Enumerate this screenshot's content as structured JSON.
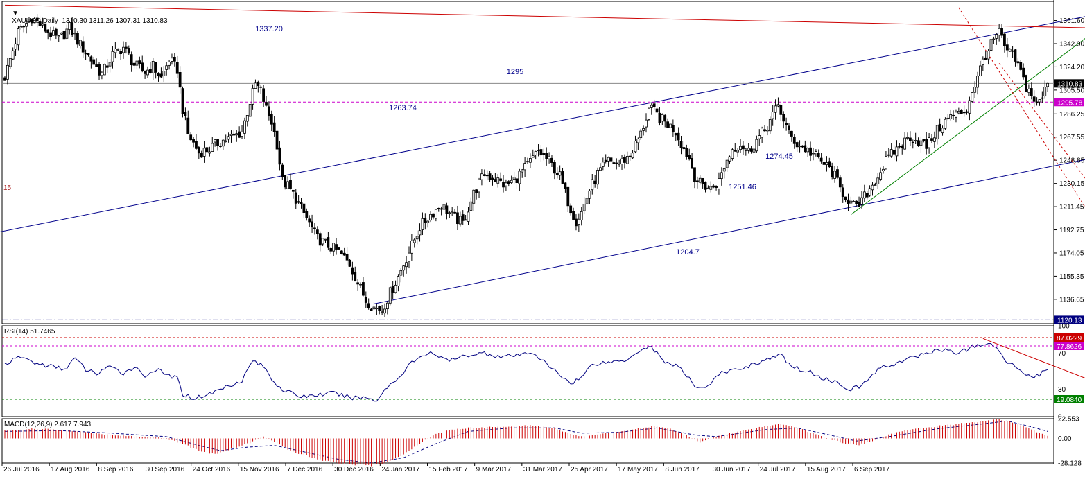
{
  "header": {
    "symbol_line": "XAUUSD,Daily  1310.30 1311.26 1307.31 1310.83",
    "side_label": "15"
  },
  "colors": {
    "bull": "#000000",
    "bear": "#000000",
    "channel": "#00008b",
    "resistance": "#cc0000",
    "trend": "#008000",
    "level_price": "#000080",
    "level_magenta": "#cc00cc",
    "rsi_line": "#000080",
    "macd_hist": "#cc0000",
    "macd_signal": "#000080",
    "grid": "#c0c0c0"
  },
  "chart_data": [
    {
      "type": "candlestick",
      "name": "main",
      "title": "XAUUSD,Daily",
      "ohlc_header": "1310.30 1311.26 1307.31 1310.83",
      "y_ticks": [
        "1361.60",
        "1342.90",
        "1324.20",
        "1305.50",
        "1286.25",
        "1267.55",
        "1248.85",
        "1230.15",
        "1211.45",
        "1192.75",
        "1174.05",
        "1155.35",
        "1136.65"
      ],
      "ylim": [
        1117.0,
        1377.0
      ],
      "x_tick_labels": [
        "26 Jul 2016",
        "17 Aug 2016",
        "8 Sep 2016",
        "30 Sep 2016",
        "24 Oct 2016",
        "15 Nov 2016",
        "7 Dec 2016",
        "30 Dec 2016",
        "24 Jan 2017",
        "15 Feb 2017",
        "9 Mar 2017",
        "31 Mar 2017",
        "25 Apr 2017",
        "17 May 2017",
        "8 Jun 2017",
        "30 Jun 2017",
        "24 Jul 2017",
        "15 Aug 2017",
        "6 Sep 2017"
      ],
      "price_path": [
        [
          0,
          1316
        ],
        [
          5,
          1352
        ],
        [
          10,
          1364
        ],
        [
          14,
          1356
        ],
        [
          20,
          1346
        ],
        [
          24,
          1356
        ],
        [
          28,
          1342
        ],
        [
          32,
          1330
        ],
        [
          36,
          1318
        ],
        [
          40,
          1334
        ],
        [
          44,
          1340
        ],
        [
          48,
          1326
        ],
        [
          52,
          1320
        ],
        [
          55,
          1325
        ],
        [
          58,
          1315
        ],
        [
          61,
          1330
        ],
        [
          64,
          1322
        ],
        [
          66,
          1290
        ],
        [
          68,
          1270
        ],
        [
          72,
          1255
        ],
        [
          76,
          1258
        ],
        [
          80,
          1264
        ],
        [
          85,
          1268
        ],
        [
          88,
          1272
        ],
        [
          91,
          1296
        ],
        [
          93,
          1310
        ],
        [
          95,
          1305
        ],
        [
          97,
          1290
        ],
        [
          99,
          1280
        ],
        [
          101,
          1262
        ],
        [
          103,
          1232
        ],
        [
          105,
          1228
        ],
        [
          108,
          1218
        ],
        [
          112,
          1202
        ],
        [
          116,
          1186
        ],
        [
          120,
          1180
        ],
        [
          124,
          1175
        ],
        [
          128,
          1165
        ],
        [
          131,
          1150
        ],
        [
          134,
          1136
        ],
        [
          137,
          1130
        ],
        [
          140,
          1128
        ],
        [
          143,
          1142
        ],
        [
          146,
          1155
        ],
        [
          150,
          1175
        ],
        [
          154,
          1195
        ],
        [
          158,
          1205
        ],
        [
          162,
          1213
        ],
        [
          166,
          1204
        ],
        [
          170,
          1198
        ],
        [
          174,
          1222
        ],
        [
          178,
          1238
        ],
        [
          182,
          1234
        ],
        [
          186,
          1228
        ],
        [
          190,
          1235
        ],
        [
          194,
          1245
        ],
        [
          198,
          1256
        ],
        [
          202,
          1248
        ],
        [
          206,
          1236
        ],
        [
          208,
          1222
        ],
        [
          210,
          1210
        ],
        [
          212,
          1200
        ],
        [
          214,
          1207
        ],
        [
          217,
          1225
        ],
        [
          220,
          1238
        ],
        [
          224,
          1248
        ],
        [
          228,
          1246
        ],
        [
          232,
          1253
        ],
        [
          236,
          1270
        ],
        [
          239,
          1290
        ],
        [
          241,
          1288
        ],
        [
          243,
          1283
        ],
        [
          246,
          1278
        ],
        [
          249,
          1272
        ],
        [
          252,
          1258
        ],
        [
          254,
          1250
        ],
        [
          256,
          1236
        ],
        [
          258,
          1230
        ],
        [
          262,
          1226
        ],
        [
          265,
          1232
        ],
        [
          267,
          1244
        ],
        [
          270,
          1258
        ],
        [
          273,
          1262
        ],
        [
          276,
          1256
        ],
        [
          279,
          1265
        ],
        [
          282,
          1273
        ],
        [
          285,
          1285
        ],
        [
          287,
          1293
        ],
        [
          289,
          1282
        ],
        [
          291,
          1270
        ],
        [
          294,
          1262
        ],
        [
          297,
          1258
        ],
        [
          300,
          1254
        ],
        [
          303,
          1248
        ],
        [
          306,
          1242
        ],
        [
          308,
          1236
        ],
        [
          310,
          1226
        ],
        [
          312,
          1220
        ],
        [
          314,
          1214
        ],
        [
          316,
          1210
        ],
        [
          318,
          1216
        ],
        [
          321,
          1226
        ],
        [
          324,
          1236
        ],
        [
          327,
          1248
        ],
        [
          330,
          1256
        ],
        [
          333,
          1262
        ],
        [
          336,
          1268
        ],
        [
          339,
          1264
        ],
        [
          342,
          1260
        ],
        [
          345,
          1270
        ],
        [
          348,
          1278
        ],
        [
          351,
          1284
        ],
        [
          354,
          1286
        ],
        [
          357,
          1290
        ],
        [
          359,
          1305
        ],
        [
          361,
          1315
        ],
        [
          363,
          1330
        ],
        [
          365,
          1338
        ],
        [
          367,
          1346
        ],
        [
          369,
          1352
        ],
        [
          371,
          1340
        ],
        [
          373,
          1335
        ],
        [
          375,
          1330
        ],
        [
          377,
          1320
        ],
        [
          379,
          1308
        ],
        [
          381,
          1302
        ],
        [
          383,
          1293
        ],
        [
          385,
          1300
        ],
        [
          387,
          1310
        ]
      ],
      "candle_count": 388,
      "last_close": 1310.83,
      "price_labels": [
        "1310.83",
        "1295.78",
        "1120.13"
      ],
      "horizontal_levels": [
        {
          "value": 1295.78,
          "label": "1295.78",
          "style": "dash",
          "color": "magenta"
        },
        {
          "value": 1120.13,
          "label": "1120.13",
          "style": "dashdot",
          "color": "navy"
        },
        {
          "value": 1310.83,
          "label": "1310.83",
          "style": "solid",
          "color": "gray"
        }
      ],
      "annotations": [
        "1337.20",
        "1295",
        "1263.74",
        "1274.45",
        "1251.46",
        "1204.7"
      ],
      "trendlines": [
        {
          "name": "channel-upper",
          "from": [
            -2,
            1191
          ],
          "to": [
            427,
            1376
          ]
        },
        {
          "name": "channel-lower",
          "from": [
            137,
            1133
          ],
          "to": [
            484,
            1286
          ]
        },
        {
          "name": "resistance",
          "from": [
            0,
            1374
          ],
          "to": [
            484,
            1352
          ]
        },
        {
          "name": "green-trend",
          "from": [
            314,
            1205
          ],
          "to": [
            418,
            1375
          ]
        },
        {
          "name": "red-dashed-1",
          "from": [
            354,
            1372
          ],
          "to": [
            428,
            1118
          ]
        },
        {
          "name": "red-dashed-2",
          "from": [
            369,
            1327
          ],
          "to": [
            441,
            1118
          ]
        }
      ]
    },
    {
      "type": "line",
      "name": "rsi",
      "title": "RSI(14) 51.7465",
      "ylim": [
        0,
        100
      ],
      "y_ticks": [
        "100",
        "70",
        "30",
        "0"
      ],
      "levels": [
        {
          "value": 87.0229,
          "label": "87.0229",
          "color": "red"
        },
        {
          "value": 77.8626,
          "label": "77.8626",
          "color": "magenta"
        },
        {
          "value": 19.084,
          "label": "19.0840",
          "color": "green"
        }
      ],
      "values_path": [
        [
          0,
          58
        ],
        [
          6,
          66
        ],
        [
          12,
          58
        ],
        [
          18,
          55
        ],
        [
          22,
          52
        ],
        [
          26,
          64
        ],
        [
          30,
          52
        ],
        [
          34,
          47
        ],
        [
          38,
          55
        ],
        [
          44,
          48
        ],
        [
          48,
          55
        ],
        [
          52,
          45
        ],
        [
          56,
          52
        ],
        [
          60,
          46
        ],
        [
          64,
          42
        ],
        [
          66,
          25
        ],
        [
          70,
          20
        ],
        [
          76,
          25
        ],
        [
          82,
          33
        ],
        [
          88,
          40
        ],
        [
          92,
          62
        ],
        [
          96,
          55
        ],
        [
          100,
          38
        ],
        [
          104,
          28
        ],
        [
          110,
          22
        ],
        [
          116,
          24
        ],
        [
          122,
          26
        ],
        [
          128,
          21
        ],
        [
          134,
          21
        ],
        [
          138,
          18
        ],
        [
          142,
          33
        ],
        [
          146,
          42
        ],
        [
          150,
          58
        ],
        [
          154,
          64
        ],
        [
          158,
          72
        ],
        [
          162,
          64
        ],
        [
          166,
          62
        ],
        [
          172,
          68
        ],
        [
          178,
          70
        ],
        [
          184,
          66
        ],
        [
          190,
          67
        ],
        [
          196,
          71
        ],
        [
          202,
          55
        ],
        [
          206,
          46
        ],
        [
          210,
          37
        ],
        [
          214,
          43
        ],
        [
          218,
          58
        ],
        [
          224,
          60
        ],
        [
          230,
          62
        ],
        [
          236,
          74
        ],
        [
          240,
          77
        ],
        [
          244,
          62
        ],
        [
          250,
          55
        ],
        [
          256,
          34
        ],
        [
          260,
          32
        ],
        [
          266,
          48
        ],
        [
          272,
          52
        ],
        [
          278,
          58
        ],
        [
          284,
          64
        ],
        [
          288,
          68
        ],
        [
          292,
          55
        ],
        [
          298,
          50
        ],
        [
          304,
          42
        ],
        [
          310,
          36
        ],
        [
          314,
          30
        ],
        [
          318,
          34
        ],
        [
          324,
          52
        ],
        [
          330,
          58
        ],
        [
          336,
          64
        ],
        [
          342,
          70
        ],
        [
          348,
          74
        ],
        [
          354,
          70
        ],
        [
          360,
          78
        ],
        [
          364,
          80
        ],
        [
          368,
          76
        ],
        [
          372,
          60
        ],
        [
          378,
          50
        ],
        [
          382,
          42
        ],
        [
          386,
          52
        ],
        [
          387,
          51.75
        ]
      ],
      "trendline": {
        "from": [
          363,
          86
        ],
        "to": [
          436,
          2
        ]
      }
    },
    {
      "type": "bar",
      "name": "macd",
      "title": "MACD(12,26,9) 2.617 7.943",
      "ylim": [
        -28.128,
        22.553
      ],
      "y_ticks": [
        "22.553",
        "0.00",
        "-28.128"
      ],
      "histogram_path": [
        [
          0,
          9
        ],
        [
          10,
          11
        ],
        [
          20,
          10
        ],
        [
          30,
          7
        ],
        [
          40,
          4
        ],
        [
          50,
          2
        ],
        [
          60,
          0
        ],
        [
          66,
          -6
        ],
        [
          72,
          -14
        ],
        [
          78,
          -18
        ],
        [
          84,
          -12
        ],
        [
          90,
          -6
        ],
        [
          96,
          2
        ],
        [
          100,
          -4
        ],
        [
          106,
          -14
        ],
        [
          112,
          -20
        ],
        [
          118,
          -25
        ],
        [
          124,
          -28
        ],
        [
          130,
          -30
        ],
        [
          136,
          -31
        ],
        [
          142,
          -27
        ],
        [
          148,
          -18
        ],
        [
          154,
          -6
        ],
        [
          160,
          6
        ],
        [
          166,
          10
        ],
        [
          172,
          12
        ],
        [
          180,
          13
        ],
        [
          188,
          14
        ],
        [
          196,
          15
        ],
        [
          204,
          12
        ],
        [
          210,
          5
        ],
        [
          214,
          2
        ],
        [
          220,
          5
        ],
        [
          228,
          8
        ],
        [
          236,
          12
        ],
        [
          242,
          14
        ],
        [
          248,
          10
        ],
        [
          254,
          2
        ],
        [
          258,
          -4
        ],
        [
          264,
          2
        ],
        [
          270,
          6
        ],
        [
          276,
          10
        ],
        [
          282,
          14
        ],
        [
          288,
          16
        ],
        [
          294,
          12
        ],
        [
          300,
          6
        ],
        [
          306,
          0
        ],
        [
          312,
          -6
        ],
        [
          316,
          -8
        ],
        [
          322,
          -3
        ],
        [
          328,
          4
        ],
        [
          334,
          9
        ],
        [
          340,
          12
        ],
        [
          346,
          14
        ],
        [
          352,
          16
        ],
        [
          358,
          18
        ],
        [
          364,
          20
        ],
        [
          368,
          22
        ],
        [
          372,
          20
        ],
        [
          378,
          14
        ],
        [
          384,
          6
        ],
        [
          387,
          3
        ]
      ],
      "signal_path": [
        [
          0,
          8
        ],
        [
          20,
          9
        ],
        [
          40,
          6
        ],
        [
          60,
          2
        ],
        [
          72,
          -8
        ],
        [
          80,
          -14
        ],
        [
          90,
          -10
        ],
        [
          100,
          -8
        ],
        [
          112,
          -16
        ],
        [
          124,
          -24
        ],
        [
          136,
          -28
        ],
        [
          148,
          -22
        ],
        [
          160,
          -6
        ],
        [
          172,
          8
        ],
        [
          188,
          12
        ],
        [
          204,
          12
        ],
        [
          214,
          6
        ],
        [
          228,
          7
        ],
        [
          242,
          12
        ],
        [
          256,
          4
        ],
        [
          264,
          2
        ],
        [
          282,
          10
        ],
        [
          294,
          12
        ],
        [
          306,
          4
        ],
        [
          316,
          -3
        ],
        [
          328,
          2
        ],
        [
          346,
          11
        ],
        [
          364,
          17
        ],
        [
          372,
          20
        ],
        [
          380,
          14
        ],
        [
          387,
          8
        ]
      ]
    }
  ]
}
